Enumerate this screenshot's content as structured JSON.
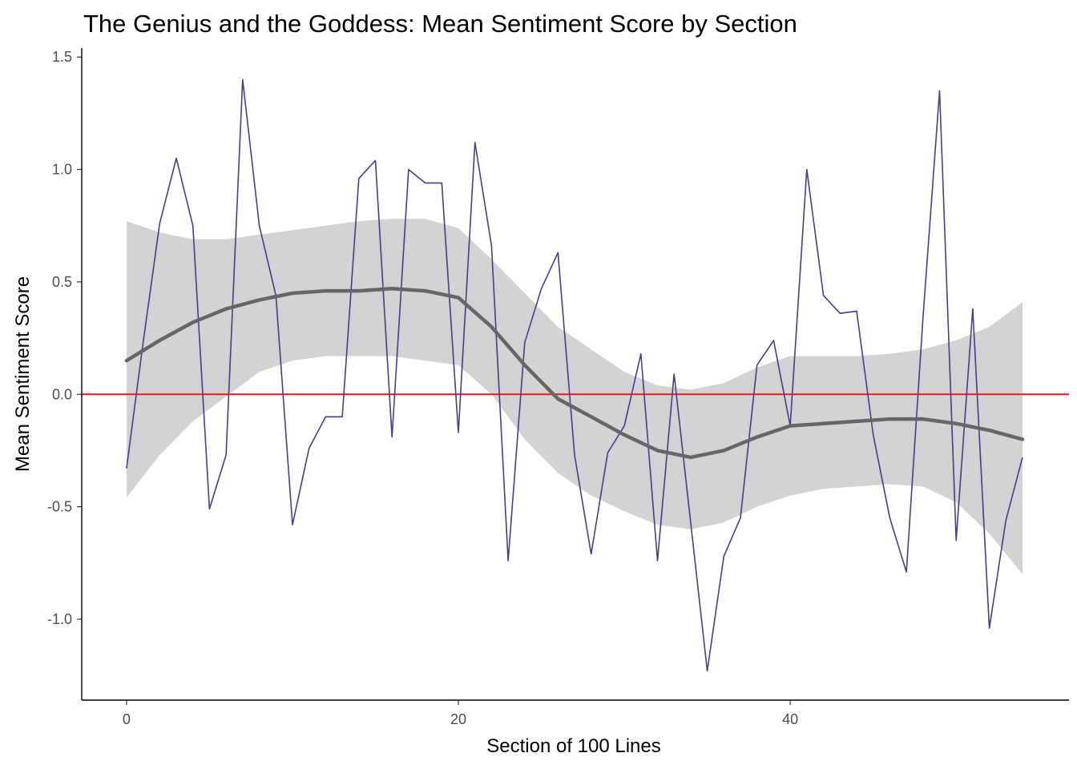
{
  "chart_data": {
    "type": "line",
    "title": "The Genius and the Goddess: Mean Sentiment Score by Section",
    "xlabel": "Section of 100 Lines",
    "ylabel": "Mean Sentiment Score",
    "xlim": [
      -2.7,
      56.8
    ],
    "ylim": [
      -1.36,
      1.54
    ],
    "x_ticks": [
      0,
      20,
      40
    ],
    "x_tick_labels": [
      "0",
      "20",
      "40"
    ],
    "y_ticks": [
      -1.0,
      -0.5,
      0.0,
      0.5,
      1.0,
      1.5
    ],
    "y_tick_labels": [
      "-1.0",
      "-0.5",
      "0.0",
      "0.5",
      "1.0",
      "1.5"
    ],
    "grid": false,
    "reference_line": {
      "y": 0.0,
      "color": "#e31a1c"
    },
    "series": [
      {
        "color": "#483d8b",
        "x": [
          0,
          1,
          2,
          3,
          4,
          5,
          6,
          7,
          8,
          9,
          10,
          11,
          12,
          13,
          14,
          15,
          16,
          17,
          18,
          19,
          20,
          21,
          22,
          23,
          24,
          25,
          26,
          27,
          28,
          29,
          30,
          31,
          32,
          33,
          34,
          35,
          36,
          37,
          38,
          39,
          40,
          41,
          42,
          43,
          44,
          45,
          46,
          47,
          48,
          49,
          50,
          51,
          52,
          53,
          54
        ],
        "y": [
          -0.33,
          0.23,
          0.76,
          1.05,
          0.75,
          -0.51,
          -0.27,
          1.4,
          0.75,
          0.44,
          -0.58,
          -0.24,
          -0.1,
          -0.1,
          0.96,
          1.04,
          -0.19,
          1.0,
          0.94,
          0.94,
          -0.17,
          1.12,
          0.66,
          -0.74,
          0.23,
          0.47,
          0.63,
          -0.27,
          -0.71,
          -0.26,
          -0.14,
          0.18,
          -0.74,
          0.09,
          -0.57,
          -1.23,
          -0.72,
          -0.55,
          0.13,
          0.24,
          -0.14,
          1.0,
          0.44,
          0.36,
          0.37,
          -0.18,
          -0.55,
          -0.79,
          0.34,
          1.35,
          -0.65,
          0.38,
          -1.04,
          -0.56,
          -0.28
        ]
      }
    ],
    "smooth": {
      "color": "#666666",
      "ribbon_color": "#d3d3d3",
      "x": [
        0,
        2,
        4,
        6,
        8,
        10,
        12,
        14,
        16,
        18,
        20,
        22,
        24,
        26,
        28,
        30,
        32,
        34,
        36,
        38,
        40,
        42,
        44,
        46,
        48,
        50,
        52,
        54
      ],
      "y": [
        0.15,
        0.24,
        0.32,
        0.38,
        0.42,
        0.45,
        0.46,
        0.46,
        0.47,
        0.46,
        0.43,
        0.3,
        0.13,
        -0.02,
        -0.1,
        -0.18,
        -0.25,
        -0.28,
        -0.25,
        -0.19,
        -0.14,
        -0.13,
        -0.12,
        -0.11,
        -0.11,
        -0.13,
        -0.16,
        -0.2
      ],
      "lower": [
        -0.46,
        -0.27,
        -0.12,
        -0.01,
        0.1,
        0.15,
        0.17,
        0.17,
        0.17,
        0.15,
        0.13,
        0.0,
        -0.2,
        -0.35,
        -0.45,
        -0.52,
        -0.58,
        -0.6,
        -0.57,
        -0.5,
        -0.45,
        -0.42,
        -0.41,
        -0.4,
        -0.41,
        -0.48,
        -0.62,
        -0.8
      ],
      "upper": [
        0.77,
        0.72,
        0.69,
        0.69,
        0.71,
        0.73,
        0.75,
        0.77,
        0.78,
        0.78,
        0.74,
        0.6,
        0.45,
        0.3,
        0.2,
        0.1,
        0.04,
        0.02,
        0.05,
        0.12,
        0.17,
        0.17,
        0.17,
        0.18,
        0.2,
        0.24,
        0.3,
        0.41
      ]
    }
  }
}
